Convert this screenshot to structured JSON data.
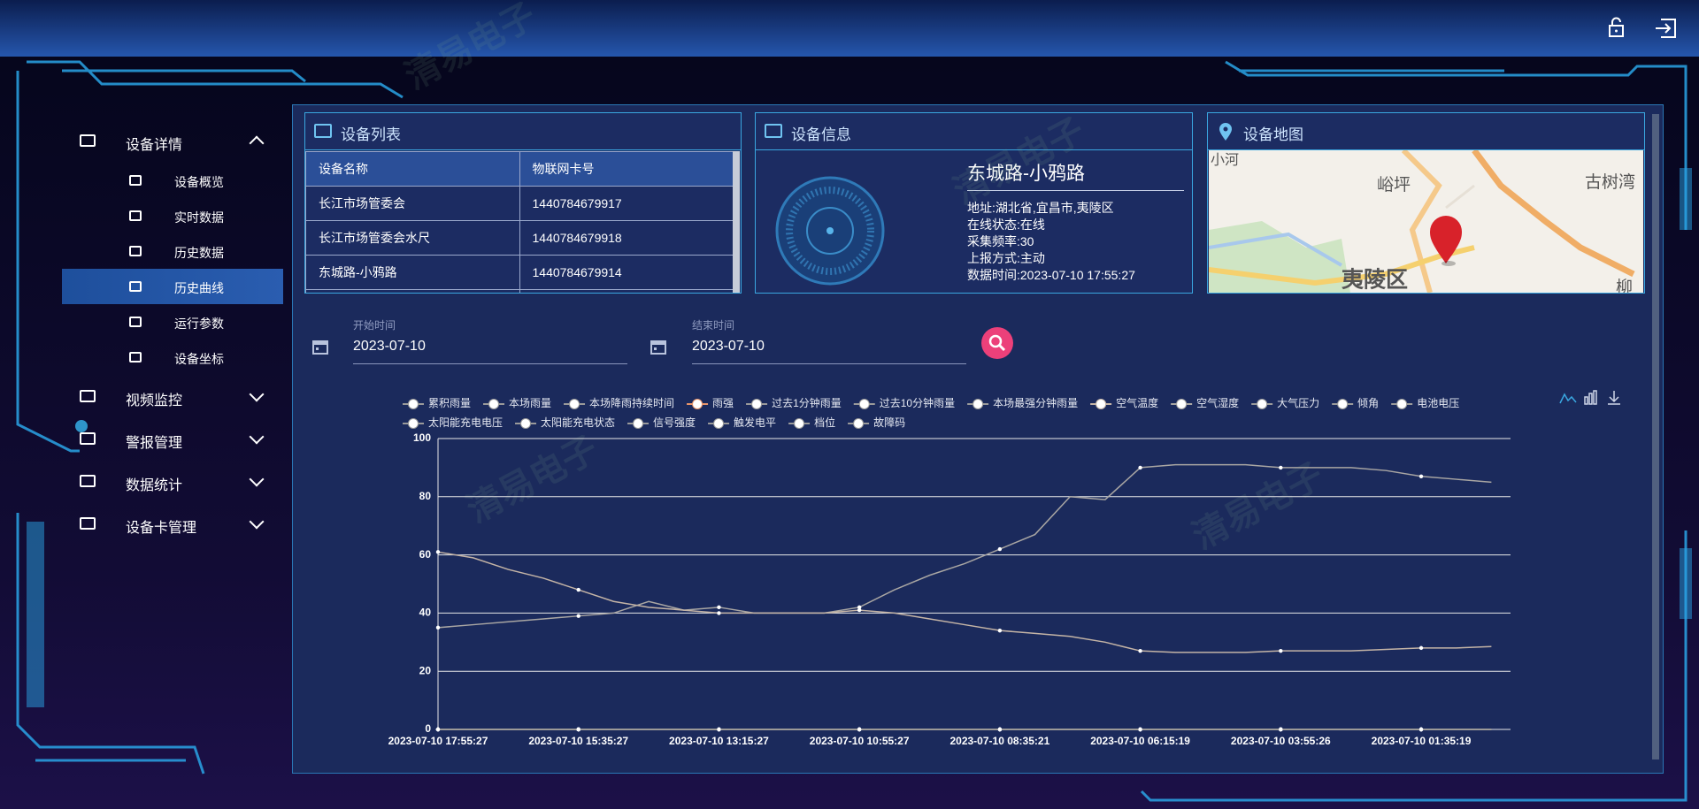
{
  "watermark": "清易电子",
  "sidebar": {
    "menu": [
      {
        "label": "设备详情",
        "children": [
          "设备概览",
          "实时数据",
          "历史数据",
          "历史曲线",
          "运行参数",
          "设备坐标"
        ]
      },
      {
        "label": "视频监控"
      },
      {
        "label": "警报管理"
      },
      {
        "label": "数据统计"
      },
      {
        "label": "设备卡管理"
      }
    ]
  },
  "device_list": {
    "title": "设备列表",
    "columns": [
      "设备名称",
      "物联网卡号"
    ],
    "rows": [
      [
        "长江市场管委会",
        "1440784679917"
      ],
      [
        "长江市场管委会水尺",
        "1440784679918"
      ],
      [
        "东城路-小鸦路",
        "1440784679914"
      ]
    ]
  },
  "device_info": {
    "title": "设备信息",
    "name": "东城路-小鸦路",
    "details": [
      "地址:湖北省,宜昌市,夷陵区",
      "在线状态:在线",
      "采集频率:30",
      "上报方式:主动",
      "数据时间:2023-07-10 17:55:27"
    ]
  },
  "device_map": {
    "title": "设备地图",
    "labels": [
      "小河",
      "峪坪",
      "古树湾",
      "夷陵区",
      "柳"
    ]
  },
  "filters": {
    "start_label": "开始时间",
    "start": "2023-07-10",
    "end_label": "结束时间",
    "end": "2023-07-10"
  },
  "chart_data": {
    "type": "line",
    "categories": [
      "2023-07-10 17:55:27",
      null,
      null,
      null,
      "2023-07-10 15:35:27",
      null,
      null,
      null,
      "2023-07-10 13:15:27",
      null,
      null,
      null,
      "2023-07-10 10:55:27",
      null,
      null,
      null,
      "2023-07-10 08:35:21",
      null,
      null,
      null,
      "2023-07-10 06:15:19",
      null,
      null,
      null,
      "2023-07-10 03:55:26",
      null,
      null,
      null,
      "2023-07-10 01:35:19",
      null,
      null
    ],
    "ylim": [
      0,
      100
    ],
    "yticks": [
      0,
      20,
      40,
      60,
      80,
      100
    ],
    "grid": true,
    "series": [
      {
        "name": "累积雨量",
        "color": "#9a9a9a",
        "values": [
          0,
          0,
          0,
          0,
          0,
          0,
          0,
          0,
          0,
          0,
          0,
          0,
          0,
          0,
          0,
          0,
          0,
          0,
          0,
          0,
          0,
          0,
          0,
          0,
          0,
          0,
          0,
          0,
          0,
          0,
          0
        ]
      },
      {
        "name": "本场雨量",
        "color": "#9a9a9a",
        "values": [
          0,
          0,
          0,
          0,
          0,
          0,
          0,
          0,
          0,
          0,
          0,
          0,
          0,
          0,
          0,
          0,
          0,
          0,
          0,
          0,
          0,
          0,
          0,
          0,
          0,
          0,
          0,
          0,
          0,
          0,
          0
        ]
      },
      {
        "name": "本场降雨持续时间",
        "color": "#9a9a9a",
        "values": [
          0,
          0,
          0,
          0,
          0,
          0,
          0,
          0,
          0,
          0,
          0,
          0,
          0,
          0,
          0,
          0,
          0,
          0,
          0,
          0,
          0,
          0,
          0,
          0,
          0,
          0,
          0,
          0,
          0,
          0,
          0
        ]
      },
      {
        "name": "雨强",
        "color": "#e8946a",
        "values": [
          0,
          0,
          0,
          0,
          0,
          0,
          0,
          0,
          0,
          0,
          0,
          0,
          0,
          0,
          0,
          0,
          0,
          0,
          0,
          0,
          0,
          0,
          0,
          0,
          0,
          0,
          0,
          0,
          0,
          0,
          0
        ]
      },
      {
        "name": "过去1分钟雨量",
        "color": "#9a9a9a",
        "values": [
          0,
          0,
          0,
          0,
          0,
          0,
          0,
          0,
          0,
          0,
          0,
          0,
          0,
          0,
          0,
          0,
          0,
          0,
          0,
          0,
          0,
          0,
          0,
          0,
          0,
          0,
          0,
          0,
          0,
          0,
          0
        ]
      },
      {
        "name": "过去10分钟雨量",
        "color": "#9a9a9a",
        "values": [
          0,
          0,
          0,
          0,
          0,
          0,
          0,
          0,
          0,
          0,
          0,
          0,
          0,
          0,
          0,
          0,
          0,
          0,
          0,
          0,
          0,
          0,
          0,
          0,
          0,
          0,
          0,
          0,
          0,
          0,
          0
        ]
      },
      {
        "name": "本场最强分钟雨量",
        "color": "#9a9a9a",
        "values": [
          0,
          0,
          0,
          0,
          0,
          0,
          0,
          0,
          0,
          0,
          0,
          0,
          0,
          0,
          0,
          0,
          0,
          0,
          0,
          0,
          0,
          0,
          0,
          0,
          0,
          0,
          0,
          0,
          0,
          0,
          0
        ]
      },
      {
        "name": "空气温度",
        "color": "#c4b4a6",
        "values": [
          61,
          59,
          55,
          52,
          48,
          44,
          42,
          41,
          40,
          40,
          40,
          40,
          41,
          40,
          38,
          36,
          34,
          33,
          32,
          30,
          27,
          26.5,
          26.5,
          26.5,
          27,
          27,
          27,
          27.5,
          28,
          28,
          28.5
        ]
      },
      {
        "name": "空气湿度",
        "color": "#a9a6a3",
        "values": [
          35,
          36,
          37,
          38,
          39,
          40,
          44,
          41,
          42,
          40,
          40,
          40,
          42,
          48,
          53,
          57,
          62,
          67,
          80,
          79,
          90,
          91,
          91,
          91,
          90,
          90,
          90,
          89,
          87,
          86,
          85
        ]
      },
      {
        "name": "大气压力",
        "color": "#9a9a9a",
        "values": [
          0,
          0,
          0,
          0,
          0,
          0,
          0,
          0,
          0,
          0,
          0,
          0,
          0,
          0,
          0,
          0,
          0,
          0,
          0,
          0,
          0,
          0,
          0,
          0,
          0,
          0,
          0,
          0,
          0,
          0,
          0
        ]
      },
      {
        "name": "倾角",
        "color": "#9a9a9a",
        "values": [
          0,
          0,
          0,
          0,
          0,
          0,
          0,
          0,
          0,
          0,
          0,
          0,
          0,
          0,
          0,
          0,
          0,
          0,
          0,
          0,
          0,
          0,
          0,
          0,
          0,
          0,
          0,
          0,
          0,
          0,
          0
        ]
      },
      {
        "name": "电池电压",
        "color": "#9a9a9a",
        "values": [
          0,
          0,
          0,
          0,
          0,
          0,
          0,
          0,
          0,
          0,
          0,
          0,
          0,
          0,
          0,
          0,
          0,
          0,
          0,
          0,
          0,
          0,
          0,
          0,
          0,
          0,
          0,
          0,
          0,
          0,
          0
        ]
      },
      {
        "name": "太阳能充电电压",
        "color": "#9a9a9a",
        "values": [
          0,
          0,
          0,
          0,
          0,
          0,
          0,
          0,
          0,
          0,
          0,
          0,
          0,
          0,
          0,
          0,
          0,
          0,
          0,
          0,
          0,
          0,
          0,
          0,
          0,
          0,
          0,
          0,
          0,
          0,
          0
        ]
      },
      {
        "name": "太阳能充电状态",
        "color": "#9a9a9a",
        "values": [
          0,
          0,
          0,
          0,
          0,
          0,
          0,
          0,
          0,
          0,
          0,
          0,
          0,
          0,
          0,
          0,
          0,
          0,
          0,
          0,
          0,
          0,
          0,
          0,
          0,
          0,
          0,
          0,
          0,
          0,
          0
        ]
      },
      {
        "name": "信号强度",
        "color": "#9a9a9a",
        "values": [
          0,
          0,
          0,
          0,
          0,
          0,
          0,
          0,
          0,
          0,
          0,
          0,
          0,
          0,
          0,
          0,
          0,
          0,
          0,
          0,
          0,
          0,
          0,
          0,
          0,
          0,
          0,
          0,
          0,
          0,
          0
        ]
      },
      {
        "name": "触发电平",
        "color": "#9a9a9a",
        "values": [
          0,
          0,
          0,
          0,
          0,
          0,
          0,
          0,
          0,
          0,
          0,
          0,
          0,
          0,
          0,
          0,
          0,
          0,
          0,
          0,
          0,
          0,
          0,
          0,
          0,
          0,
          0,
          0,
          0,
          0,
          0
        ]
      },
      {
        "name": "档位",
        "color": "#9a9a9a",
        "values": [
          0,
          0,
          0,
          0,
          0,
          0,
          0,
          0,
          0,
          0,
          0,
          0,
          0,
          0,
          0,
          0,
          0,
          0,
          0,
          0,
          0,
          0,
          0,
          0,
          0,
          0,
          0,
          0,
          0,
          0,
          0
        ]
      },
      {
        "name": "故障码",
        "color": "#9a9a9a",
        "values": [
          0,
          0,
          0,
          0,
          0,
          0,
          0,
          0,
          0,
          0,
          0,
          0,
          0,
          0,
          0,
          0,
          0,
          0,
          0,
          0,
          0,
          0,
          0,
          0,
          0,
          0,
          0,
          0,
          0,
          0,
          0
        ]
      }
    ]
  }
}
